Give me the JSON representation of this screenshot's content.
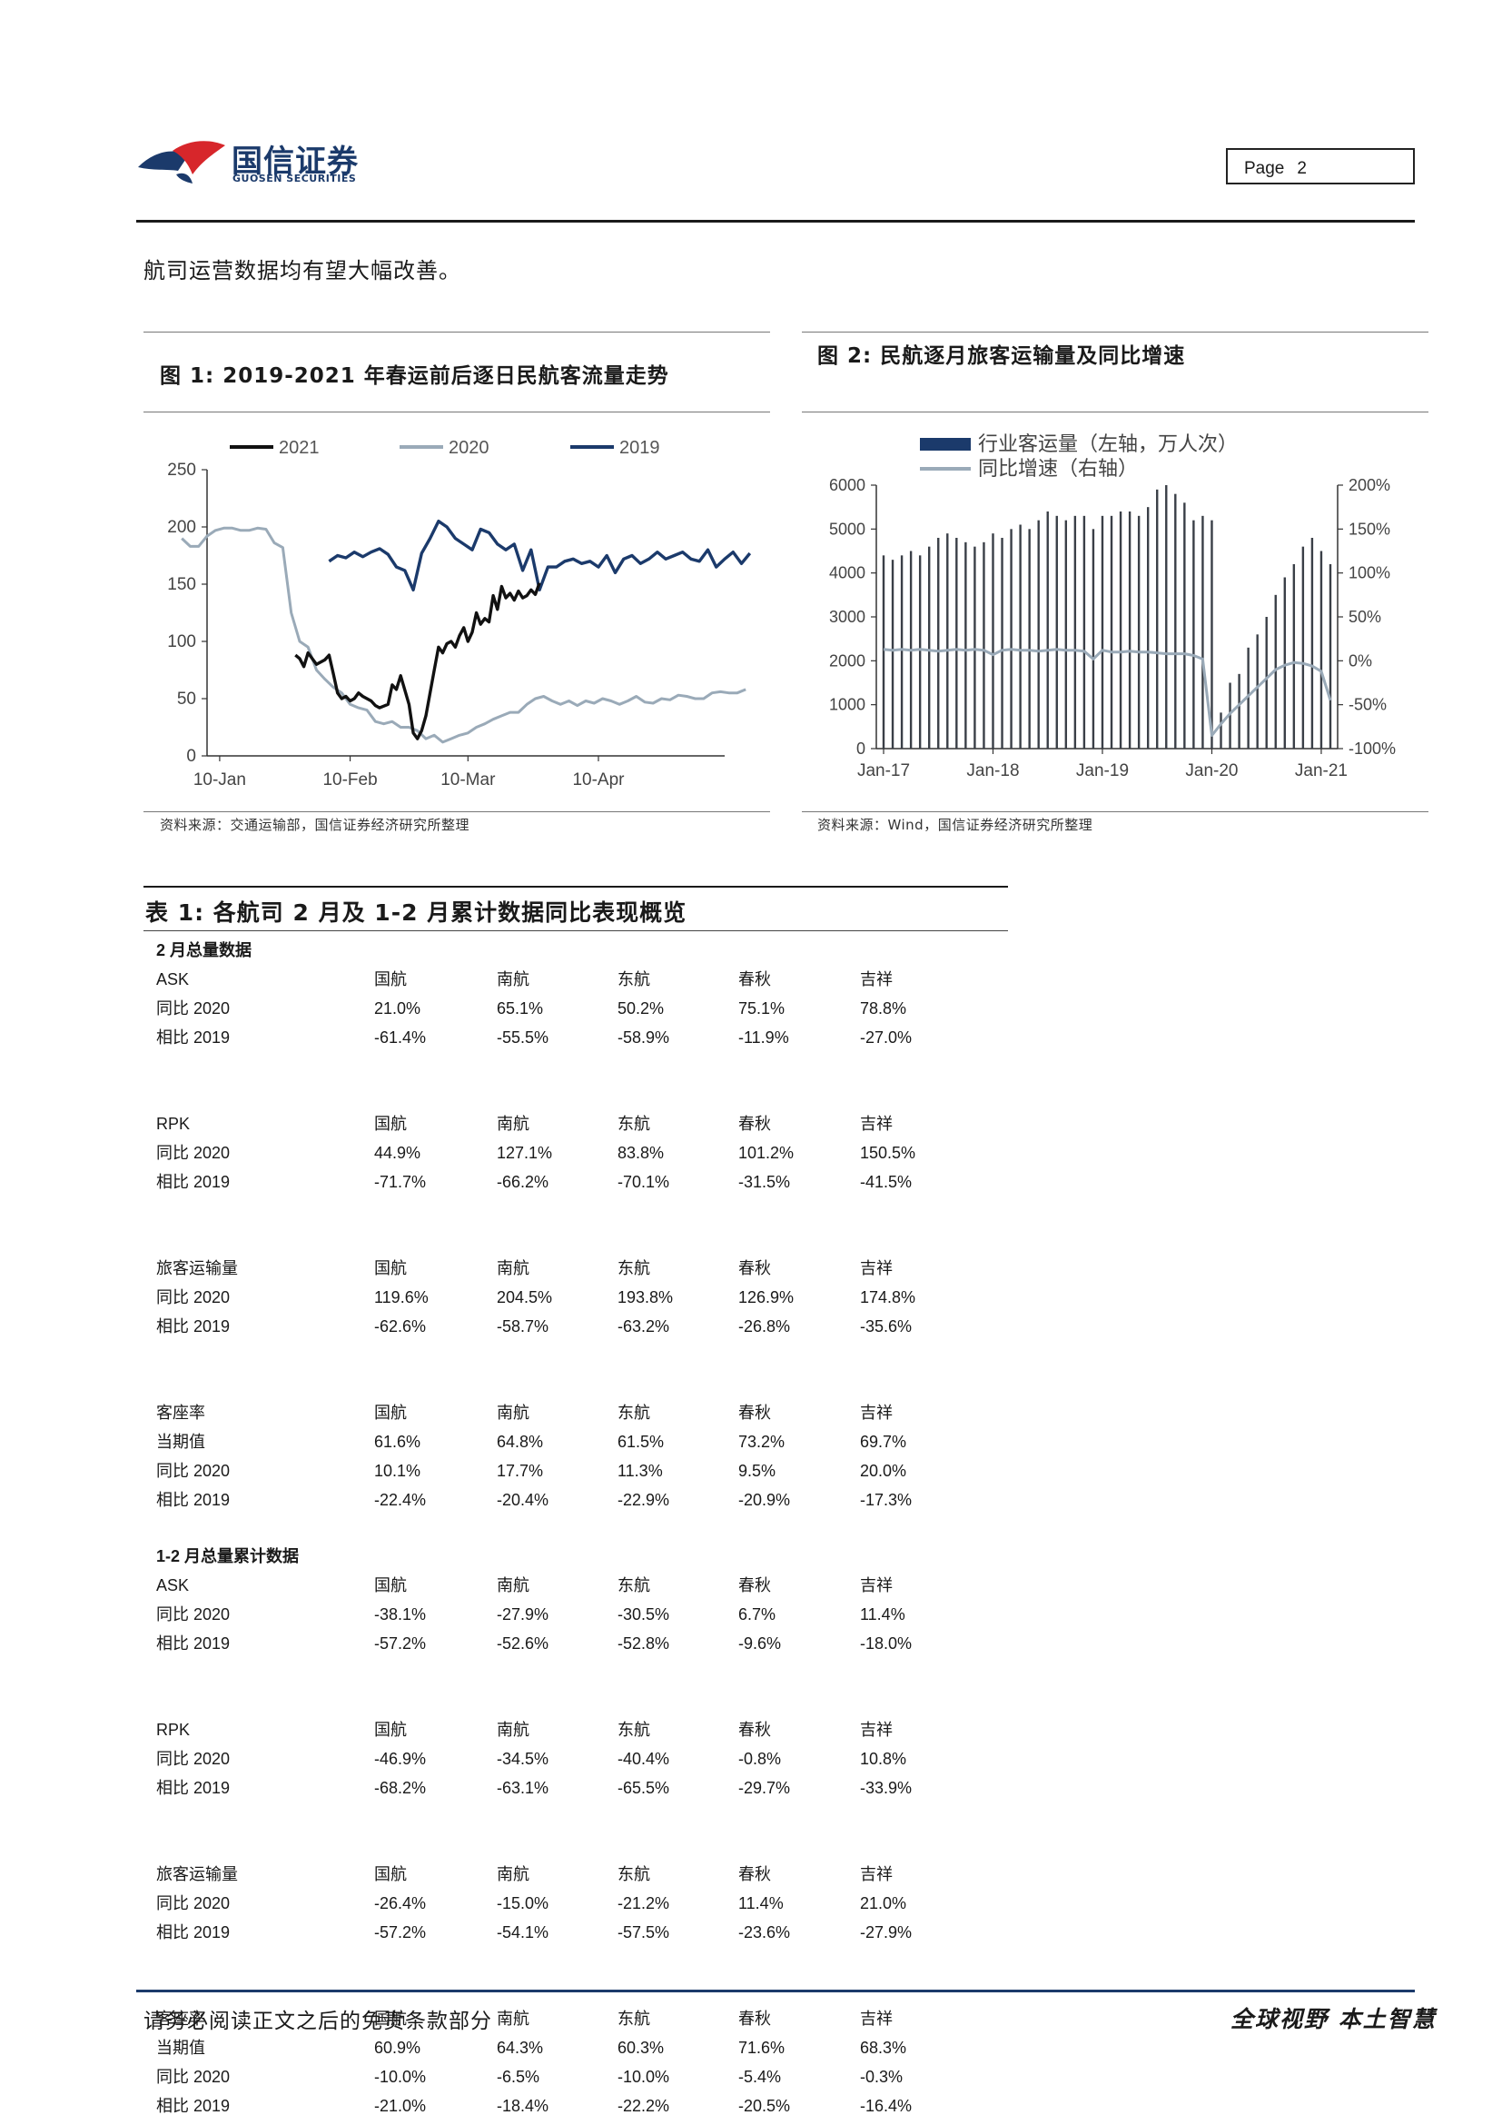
{
  "header": {
    "brand_cn": "国信证券",
    "brand_en": "GUOSEN SECURITIES",
    "page_label": "Page",
    "page_number": "2"
  },
  "lead_text": "航司运营数据均有望大幅改善。",
  "figure1": {
    "title": "图 1: 2019-2021 年春运前后逐日民航客流量走势",
    "source": "资料来源：交通运输部，国信证券经济研究所整理"
  },
  "figure2": {
    "title": "图 2: 民航逐月旅客运输量及同比增速",
    "source": "资料来源：Wind，国信证券经济研究所整理"
  },
  "chart_data": [
    {
      "type": "line",
      "legend_position": "top",
      "x_tick_labels": [
        "10-Jan",
        "10-Feb",
        "10-Mar",
        "10-Apr"
      ],
      "ylim": [
        0,
        250
      ],
      "y_ticks": [
        0,
        50,
        100,
        150,
        200,
        250
      ],
      "x_unit": "days since 1-Jan (axis ticks at 10-Jan, 10-Feb, 10-Mar, 10-Apr)",
      "series": [
        {
          "name": "2021",
          "color": "#111111",
          "x": [
            28,
            29,
            30,
            31,
            33,
            35,
            36,
            37,
            38,
            39,
            40,
            41,
            42,
            43,
            44,
            45,
            46,
            47,
            48,
            50,
            51,
            52,
            53,
            55,
            56,
            57,
            58,
            59,
            60,
            61,
            62,
            63,
            64,
            65,
            66,
            67,
            68,
            69,
            70,
            71,
            72,
            73,
            74,
            75,
            76,
            77,
            78,
            79,
            80,
            81,
            82,
            83,
            84,
            85,
            86
          ],
          "y": [
            88,
            85,
            78,
            90,
            80,
            84,
            88,
            72,
            55,
            50,
            52,
            48,
            50,
            55,
            52,
            50,
            48,
            44,
            42,
            45,
            62,
            58,
            70,
            45,
            20,
            15,
            22,
            35,
            55,
            75,
            95,
            90,
            98,
            100,
            95,
            105,
            112,
            100,
            108,
            125,
            115,
            120,
            117,
            140,
            128,
            148,
            138,
            142,
            136,
            144,
            138,
            140,
            145,
            141,
            151
          ]
        },
        {
          "name": "2020",
          "color": "#9aaab8",
          "x": [
            1,
            3,
            5,
            7,
            9,
            11,
            13,
            15,
            17,
            19,
            21,
            23,
            25,
            27,
            29,
            31,
            33,
            35,
            37,
            39,
            41,
            43,
            45,
            47,
            49,
            51,
            53,
            55,
            57,
            59,
            61,
            63,
            65,
            67,
            69,
            71,
            73,
            75,
            77,
            79,
            81,
            83,
            85,
            87,
            89,
            91,
            93,
            95,
            97,
            99,
            101,
            103,
            105,
            107,
            109,
            111,
            113,
            115,
            117,
            119,
            121,
            123,
            125,
            127,
            129,
            131,
            133,
            135
          ],
          "y": [
            190,
            183,
            183,
            192,
            197,
            199,
            199,
            197,
            197,
            199,
            198,
            186,
            182,
            125,
            100,
            95,
            75,
            67,
            60,
            55,
            45,
            42,
            40,
            30,
            28,
            30,
            25,
            25,
            22,
            15,
            18,
            12,
            15,
            18,
            20,
            25,
            28,
            32,
            35,
            38,
            38,
            45,
            50,
            52,
            48,
            45,
            48,
            44,
            48,
            46,
            50,
            48,
            45,
            48,
            52,
            47,
            46,
            50,
            49,
            53,
            52,
            50,
            50,
            55,
            56,
            55,
            55,
            58
          ]
        },
        {
          "name": "2019",
          "color": "#1b3a6b",
          "x": [
            36,
            38,
            40,
            42,
            44,
            46,
            48,
            50,
            52,
            54,
            56,
            58,
            60,
            62,
            64,
            66,
            68,
            70,
            72,
            74,
            76,
            78,
            80,
            82,
            84,
            86,
            88,
            90,
            92,
            94,
            96,
            98,
            100,
            102,
            104,
            106,
            108,
            110,
            112,
            114,
            116,
            118,
            120,
            122,
            124,
            126,
            128,
            130,
            132,
            134,
            136
          ],
          "y": [
            170,
            175,
            173,
            178,
            174,
            178,
            181,
            176,
            165,
            162,
            145,
            177,
            190,
            205,
            200,
            190,
            185,
            180,
            198,
            195,
            185,
            180,
            185,
            162,
            180,
            145,
            165,
            165,
            170,
            172,
            168,
            170,
            165,
            175,
            160,
            172,
            175,
            168,
            172,
            178,
            172,
            175,
            178,
            172,
            170,
            180,
            165,
            172,
            178,
            168,
            177
          ]
        }
      ]
    },
    {
      "type": "bar",
      "legend_position": "top",
      "x_tick_labels": [
        "Jan-17",
        "Jan-18",
        "Jan-19",
        "Jan-20",
        "Jan-21"
      ],
      "ylim_left": [
        0,
        6000
      ],
      "y_ticks_left": [
        0,
        1000,
        2000,
        3000,
        4000,
        5000,
        6000
      ],
      "ylim_right": [
        -1,
        2
      ],
      "y_ticks_right": [
        "-100%",
        "-50%",
        "0%",
        "50%",
        "100%",
        "150%",
        "200%"
      ],
      "series": [
        {
          "name": "行业客运量（左轴，万人次）",
          "axis": "left",
          "color": "#1b3a6b",
          "values": [
            4400,
            4300,
            4400,
            4500,
            4400,
            4600,
            4800,
            4900,
            4800,
            4700,
            4600,
            4700,
            4900,
            4800,
            5000,
            5100,
            5000,
            5200,
            5400,
            5300,
            5200,
            5300,
            5300,
            5000,
            5300,
            5300,
            5400,
            5400,
            5300,
            5500,
            5900,
            6000,
            5800,
            5600,
            5200,
            5300,
            5200,
            820,
            1500,
            1700,
            2300,
            2600,
            3000,
            3500,
            3900,
            4200,
            4600,
            4800,
            4500,
            4200
          ]
        },
        {
          "name": "同比增速（右轴）",
          "axis": "right",
          "color": "#9aaab8",
          "values": [
            0.13,
            0.12,
            0.13,
            0.12,
            0.13,
            0.12,
            0.11,
            0.12,
            0.13,
            0.12,
            0.13,
            0.12,
            0.07,
            0.12,
            0.13,
            0.12,
            0.12,
            0.11,
            0.12,
            0.13,
            0.12,
            0.12,
            0.11,
            0.02,
            0.12,
            0.1,
            0.1,
            0.11,
            0.1,
            0.1,
            0.09,
            0.08,
            0.08,
            0.08,
            0.06,
            0.02,
            -0.85,
            -0.72,
            -0.6,
            -0.5,
            -0.4,
            -0.3,
            -0.2,
            -0.1,
            -0.05,
            -0.02,
            -0.03,
            -0.06,
            -0.12,
            -0.45
          ]
        }
      ]
    }
  ],
  "table": {
    "title": "表 1: 各航司 2 月及 1-2 月累计数据同比表现概览",
    "sections": [
      {
        "heading": "2 月总量数据",
        "groups": [
          {
            "metric": "ASK",
            "rows": [
              {
                "label": "同比 2020",
                "values": [
                  "21.0%",
                  "65.1%",
                  "50.2%",
                  "75.1%",
                  "78.8%"
                ]
              },
              {
                "label": "相比 2019",
                "values": [
                  "-61.4%",
                  "-55.5%",
                  "-58.9%",
                  "-11.9%",
                  "-27.0%"
                ]
              }
            ]
          },
          {
            "metric": "RPK",
            "rows": [
              {
                "label": "同比 2020",
                "values": [
                  "44.9%",
                  "127.1%",
                  "83.8%",
                  "101.2%",
                  "150.5%"
                ]
              },
              {
                "label": "相比 2019",
                "values": [
                  "-71.7%",
                  "-66.2%",
                  "-70.1%",
                  "-31.5%",
                  "-41.5%"
                ]
              }
            ]
          },
          {
            "metric": "旅客运输量",
            "rows": [
              {
                "label": "同比 2020",
                "values": [
                  "119.6%",
                  "204.5%",
                  "193.8%",
                  "126.9%",
                  "174.8%"
                ]
              },
              {
                "label": "相比 2019",
                "values": [
                  "-62.6%",
                  "-58.7%",
                  "-63.2%",
                  "-26.8%",
                  "-35.6%"
                ]
              }
            ]
          },
          {
            "metric": "客座率",
            "rows": [
              {
                "label": "当期值",
                "values": [
                  "61.6%",
                  "64.8%",
                  "61.5%",
                  "73.2%",
                  "69.7%"
                ]
              },
              {
                "label": "同比 2020",
                "values": [
                  "10.1%",
                  "17.7%",
                  "11.3%",
                  "9.5%",
                  "20.0%"
                ]
              },
              {
                "label": "相比 2019",
                "values": [
                  "-22.4%",
                  "-20.4%",
                  "-22.9%",
                  "-20.9%",
                  "-17.3%"
                ]
              }
            ]
          }
        ]
      },
      {
        "heading": "1-2 月总量累计数据",
        "groups": [
          {
            "metric": "ASK",
            "rows": [
              {
                "label": "同比 2020",
                "values": [
                  "-38.1%",
                  "-27.9%",
                  "-30.5%",
                  "6.7%",
                  "11.4%"
                ]
              },
              {
                "label": "相比 2019",
                "values": [
                  "-57.2%",
                  "-52.6%",
                  "-52.8%",
                  "-9.6%",
                  "-18.0%"
                ]
              }
            ]
          },
          {
            "metric": "RPK",
            "rows": [
              {
                "label": "同比 2020",
                "values": [
                  "-46.9%",
                  "-34.5%",
                  "-40.4%",
                  "-0.8%",
                  "10.8%"
                ]
              },
              {
                "label": "相比 2019",
                "values": [
                  "-68.2%",
                  "-63.1%",
                  "-65.5%",
                  "-29.7%",
                  "-33.9%"
                ]
              }
            ]
          },
          {
            "metric": "旅客运输量",
            "rows": [
              {
                "label": "同比 2020",
                "values": [
                  "-26.4%",
                  "-15.0%",
                  "-21.2%",
                  "11.4%",
                  "21.0%"
                ]
              },
              {
                "label": "相比 2019",
                "values": [
                  "-57.2%",
                  "-54.1%",
                  "-57.5%",
                  "-23.6%",
                  "-27.9%"
                ]
              }
            ]
          },
          {
            "metric": "客座率",
            "rows": [
              {
                "label": "当期值",
                "values": [
                  "60.9%",
                  "64.3%",
                  "60.3%",
                  "71.6%",
                  "68.3%"
                ]
              },
              {
                "label": "同比 2020",
                "values": [
                  "-10.0%",
                  "-6.5%",
                  "-10.0%",
                  "-5.4%",
                  "-0.3%"
                ]
              },
              {
                "label": "相比 2019",
                "values": [
                  "-21.0%",
                  "-18.4%",
                  "-22.2%",
                  "-20.5%",
                  "-16.4%"
                ]
              }
            ]
          }
        ]
      }
    ],
    "airlines": [
      "国航",
      "南航",
      "东航",
      "春秋",
      "吉祥"
    ]
  },
  "footer": {
    "disclaimer": "请务必阅读正文之后的免责条款部分",
    "slogan": "全球视野 本土智慧"
  },
  "colors": {
    "brand_navy": "#1b3a6b",
    "brand_red": "#d7262b",
    "series_gray": "#9aaab8"
  }
}
